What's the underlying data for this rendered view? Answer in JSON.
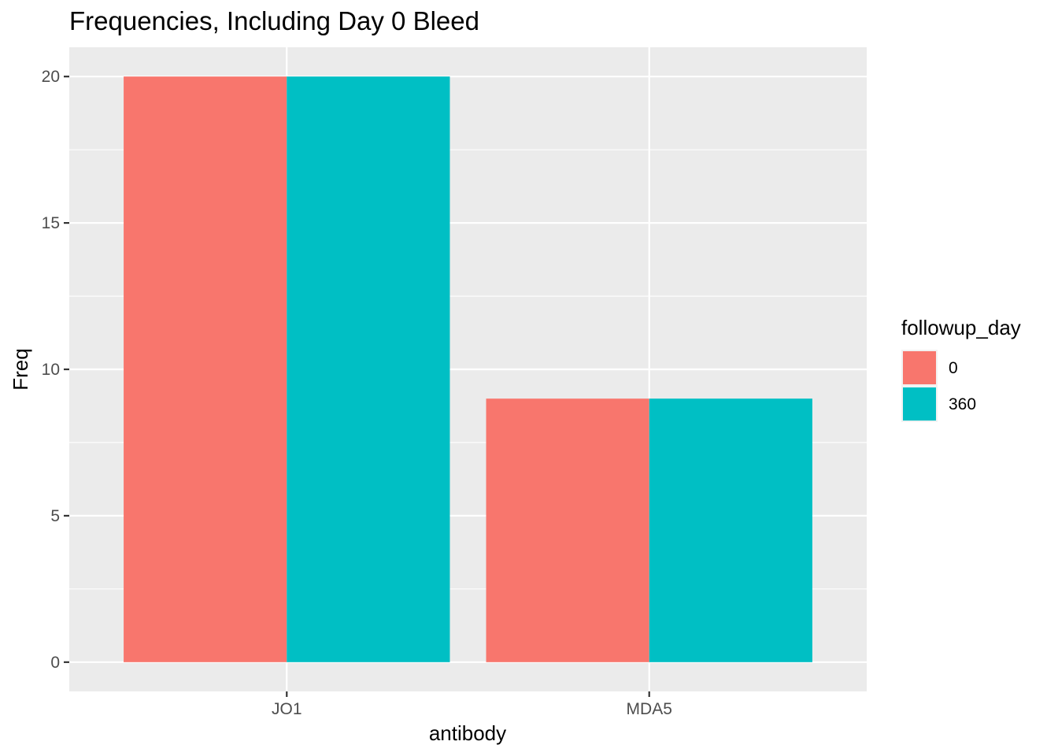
{
  "chart_data": {
    "type": "bar",
    "title": "Frequencies, Including Day 0 Bleed",
    "xlabel": "antibody",
    "ylabel": "Freq",
    "categories": [
      "JO1",
      "MDA5"
    ],
    "series": [
      {
        "name": "0",
        "values": [
          20,
          9
        ],
        "color": "#F8766D"
      },
      {
        "name": "360",
        "values": [
          20,
          9
        ],
        "color": "#00BFC4"
      }
    ],
    "ylim": [
      -1,
      21
    ],
    "yticks": [
      0,
      5,
      10,
      15,
      20
    ],
    "legend": {
      "title": "followup_day",
      "position": "right"
    },
    "grid": true,
    "panel_background": "#EBEBEB"
  }
}
